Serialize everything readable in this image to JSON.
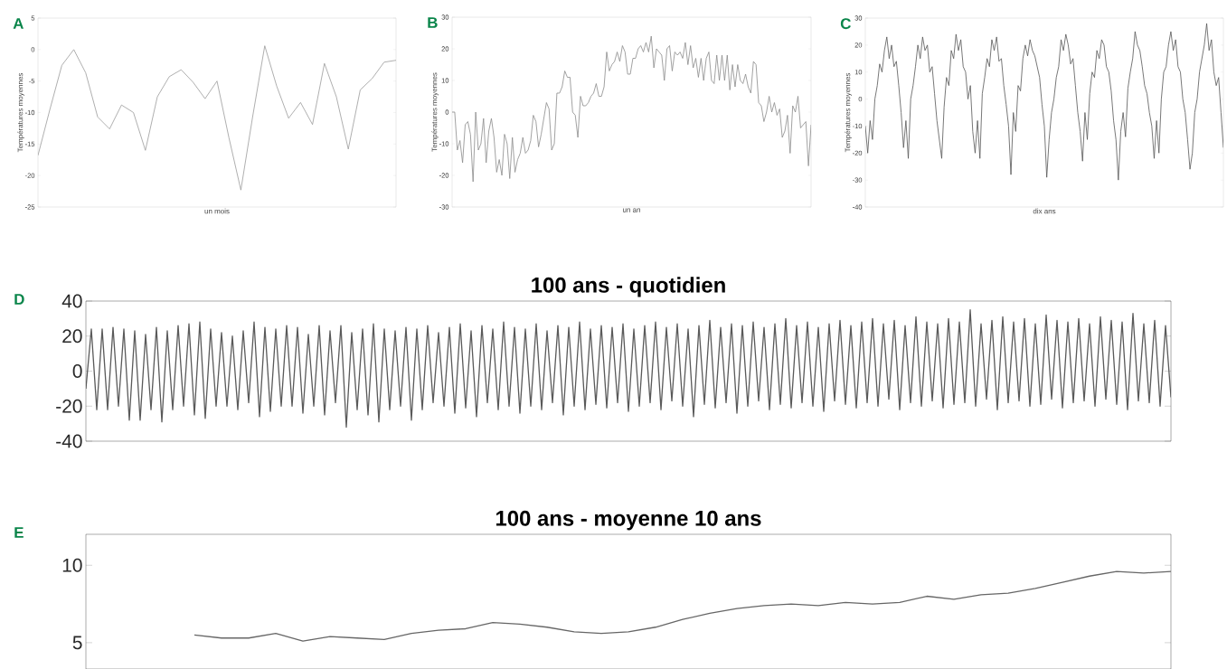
{
  "chart_data": [
    {
      "type": "line",
      "xlabel": "un mois",
      "ylabel": "Températures moyennes",
      "annotations": [
        "A"
      ],
      "tick_labels": "y",
      "color": "#9a9a9a",
      "ylim": [
        -25,
        5
      ],
      "yticks": [
        -25,
        -20,
        -15,
        -10,
        -5,
        0,
        5
      ],
      "categories": [
        null,
        null,
        null,
        null,
        null,
        null,
        null,
        null,
        null,
        null,
        null,
        null,
        null,
        null,
        null,
        null,
        null,
        null,
        null,
        null,
        null,
        null,
        null,
        null,
        null,
        null,
        null,
        null,
        null,
        null,
        null
      ],
      "values": [
        -16.8,
        -9.5,
        -2.5,
        0,
        -3.7,
        -10.7,
        -12.6,
        -8.8,
        -10,
        -16,
        -7.5,
        -4.3,
        -3.2,
        -5.2,
        -7.8,
        -5,
        -14,
        -22.3,
        -10.5,
        0.6,
        -5.8,
        -10.9,
        -8.4,
        -11.9,
        -2.2,
        -7.5,
        -15.8,
        -6.4,
        -4.6,
        -2,
        -1.7
      ]
    },
    {
      "type": "line",
      "xlabel": "un an",
      "ylabel": "Températures moyennes",
      "annotations": [
        "B"
      ],
      "tick_labels": "y",
      "color": "#8a8a8a",
      "ylim": [
        -30,
        30
      ],
      "yticks": [
        -30,
        -20,
        -10,
        0,
        10,
        20,
        30
      ],
      "categories": [
        null,
        null,
        null,
        null,
        null,
        null,
        null,
        null,
        null,
        null,
        null,
        null,
        null,
        null,
        null,
        null,
        null,
        null,
        null,
        null,
        null,
        null,
        null,
        null,
        null,
        null,
        null,
        null,
        null,
        null,
        null,
        null,
        null,
        null,
        null,
        null,
        null,
        null,
        null,
        null,
        null,
        null,
        null,
        null,
        null,
        null,
        null,
        null,
        null,
        null,
        null,
        null,
        null,
        null,
        null,
        null,
        null,
        null,
        null,
        null,
        null,
        null,
        null,
        null,
        null,
        null,
        null,
        null,
        null,
        null,
        null,
        null,
        null,
        null,
        null,
        null,
        null,
        null,
        null,
        null,
        null,
        null,
        null,
        null,
        null,
        null,
        null,
        null,
        null,
        null,
        null,
        null,
        null,
        null,
        null,
        null,
        null,
        null,
        null,
        null,
        null,
        null,
        null,
        null,
        null,
        null,
        null,
        null,
        null,
        null,
        null,
        null,
        null,
        null,
        null,
        null,
        null,
        null,
        null,
        null,
        null,
        null,
        null,
        null,
        null,
        null,
        null,
        null,
        null,
        null,
        null,
        null,
        null,
        null,
        null,
        null,
        null,
        null
      ],
      "values": [
        0,
        0,
        -12,
        -9,
        -16,
        -4,
        -3,
        -7,
        -22,
        0,
        -12,
        -10,
        -2,
        -16,
        -6,
        -2,
        -8,
        -19,
        -15,
        -20,
        -7,
        -10,
        -21,
        -8,
        -19,
        -15,
        -13,
        -8,
        -13,
        -12,
        -9,
        -1,
        -3,
        -11,
        -7,
        -2,
        3,
        1,
        -12,
        -10,
        6,
        6,
        8,
        13,
        11,
        11,
        0,
        -1,
        -8,
        5,
        2,
        2,
        3,
        5,
        6,
        9,
        5,
        5,
        8,
        19,
        13,
        15,
        16,
        19,
        16,
        21,
        19,
        12,
        12,
        17,
        17,
        20,
        21,
        19,
        22,
        19,
        24,
        14,
        20,
        19,
        18,
        10,
        20,
        21,
        13,
        19,
        18,
        19,
        17,
        22,
        15,
        21,
        14,
        17,
        11,
        17,
        10,
        17,
        19,
        10,
        9,
        18,
        10,
        18,
        10,
        18,
        7,
        15,
        8,
        15,
        10,
        9,
        12,
        8,
        6,
        16,
        15,
        3,
        2,
        -3,
        0,
        5,
        0,
        3,
        -1,
        1,
        -8,
        -6,
        -1,
        -13,
        2,
        0,
        5,
        -5,
        -4,
        -3,
        -17,
        -4
      ]
    },
    {
      "type": "line",
      "xlabel": "dix ans",
      "ylabel": "Températures moyennes",
      "annotations": [
        "C"
      ],
      "tick_labels": "y",
      "color": "#555555",
      "ylim": [
        -40,
        30
      ],
      "yticks": [
        -40,
        -30,
        -20,
        -10,
        0,
        10,
        20,
        30
      ],
      "categories": [
        null,
        null,
        null,
        null,
        null,
        null,
        null,
        null,
        null,
        null,
        null,
        null,
        null,
        null,
        null,
        null,
        null,
        null,
        null,
        null,
        null,
        null,
        null,
        null,
        null,
        null,
        null,
        null,
        null,
        null,
        null,
        null,
        null,
        null,
        null,
        null,
        null,
        null,
        null,
        null,
        null,
        null,
        null,
        null,
        null,
        null,
        null,
        null,
        null,
        null,
        null,
        null,
        null,
        null,
        null,
        null,
        null,
        null,
        null,
        null,
        null,
        null,
        null,
        null,
        null,
        null,
        null,
        null,
        null,
        null,
        null,
        null,
        null,
        null,
        null,
        null,
        null,
        null,
        null,
        null,
        null,
        null,
        null,
        null,
        null,
        null,
        null,
        null,
        null,
        null,
        null,
        null,
        null,
        null,
        null,
        null,
        null,
        null,
        null,
        null,
        null,
        null,
        null,
        null,
        null,
        null,
        null,
        null,
        null,
        null,
        null,
        null,
        null,
        null,
        null,
        null,
        null,
        null,
        null,
        null,
        null,
        null,
        null,
        null,
        null,
        null,
        null,
        null,
        null,
        null,
        null,
        null,
        null,
        null,
        null,
        null,
        null,
        null,
        null,
        null,
        null,
        null,
        null,
        null,
        null,
        null,
        null,
        null,
        null,
        null,
        null
      ],
      "values": [
        -10,
        -20,
        -8,
        -15,
        0,
        5,
        13,
        10,
        18,
        23,
        15,
        20,
        12,
        14,
        5,
        -5,
        -18,
        -8,
        -22,
        0,
        5,
        12,
        20,
        15,
        23,
        18,
        20,
        10,
        12,
        2,
        -8,
        -15,
        -22,
        -3,
        8,
        5,
        18,
        15,
        24,
        18,
        22,
        12,
        10,
        0,
        5,
        -12,
        -20,
        -8,
        -22,
        2,
        8,
        15,
        12,
        22,
        18,
        23,
        14,
        15,
        5,
        -2,
        -10,
        -28,
        -5,
        -12,
        5,
        3,
        15,
        20,
        16,
        22,
        18,
        16,
        12,
        8,
        -2,
        -10,
        -29,
        -15,
        -5,
        0,
        8,
        12,
        22,
        18,
        24,
        20,
        13,
        15,
        5,
        -5,
        -12,
        -23,
        -5,
        -15,
        2,
        10,
        8,
        18,
        15,
        22,
        20,
        12,
        10,
        3,
        -8,
        -15,
        -30,
        -12,
        -5,
        -14,
        4,
        10,
        15,
        25,
        20,
        18,
        12,
        5,
        2,
        -5,
        -10,
        -22,
        -8,
        -20,
        0,
        10,
        12,
        20,
        25,
        18,
        22,
        12,
        10,
        0,
        -5,
        -15,
        -26,
        -20,
        -5,
        0,
        10,
        15,
        20,
        28,
        18,
        22,
        10,
        5,
        8,
        -5,
        -18
      ]
    },
    {
      "type": "line",
      "title": "100 ans - quotidien",
      "annotations": [
        "D"
      ],
      "tick_labels": "y",
      "color": "#5a5a5a",
      "ylim": [
        -40,
        40
      ],
      "yticks": [
        -40,
        -20,
        0,
        20,
        40
      ],
      "categories": [
        null,
        null,
        null,
        null,
        null,
        null,
        null,
        null,
        null,
        null,
        null,
        null,
        null,
        null,
        null,
        null,
        null,
        null,
        null,
        null,
        null,
        null,
        null,
        null,
        null,
        null,
        null,
        null,
        null,
        null,
        null,
        null,
        null,
        null,
        null,
        null,
        null,
        null,
        null,
        null,
        null,
        null,
        null,
        null,
        null,
        null,
        null,
        null,
        null,
        null,
        null,
        null,
        null,
        null,
        null,
        null,
        null,
        null,
        null,
        null,
        null,
        null,
        null,
        null,
        null,
        null,
        null,
        null,
        null,
        null,
        null,
        null,
        null,
        null,
        null,
        null,
        null,
        null,
        null,
        null,
        null,
        null,
        null,
        null,
        null,
        null,
        null,
        null,
        null,
        null,
        null,
        null,
        null,
        null,
        null,
        null,
        null,
        null,
        null,
        null,
        null,
        null,
        null,
        null,
        null,
        null,
        null,
        null,
        null,
        null,
        null,
        null,
        null,
        null,
        null,
        null,
        null,
        null,
        null,
        null,
        null,
        null,
        null,
        null,
        null,
        null,
        null,
        null,
        null,
        null,
        null,
        null,
        null,
        null,
        null,
        null,
        null,
        null,
        null,
        null,
        null,
        null,
        null,
        null,
        null,
        null,
        null,
        null,
        null,
        null,
        null,
        null,
        null,
        null,
        null,
        null,
        null,
        null,
        null,
        null,
        null,
        null,
        null,
        null,
        null,
        null,
        null,
        null,
        null,
        null,
        null,
        null,
        null,
        null,
        null,
        null,
        null,
        null,
        null,
        null,
        null,
        null,
        null,
        null,
        null,
        null,
        null,
        null,
        null,
        null,
        null,
        null,
        null,
        null,
        null,
        null,
        null,
        null,
        null,
        null,
        null
      ],
      "values": [
        -10,
        24,
        -22,
        24,
        -22,
        25,
        -20,
        24,
        -28,
        23,
        -28,
        21,
        -22,
        25,
        -29,
        23,
        -22,
        26,
        -20,
        27,
        -25,
        28,
        -27,
        24,
        -20,
        22,
        -20,
        20,
        -22,
        23,
        -18,
        28,
        -26,
        25,
        -23,
        24,
        -20,
        26,
        -20,
        25,
        -24,
        21,
        -20,
        26,
        -25,
        23,
        -18,
        26,
        -32,
        22,
        -22,
        24,
        -25,
        27,
        -29,
        24,
        -22,
        23,
        -20,
        25,
        -28,
        24,
        -22,
        26,
        -18,
        22,
        -20,
        25,
        -24,
        27,
        -21,
        23,
        -26,
        26,
        -18,
        24,
        -22,
        28,
        -20,
        25,
        -24,
        24,
        -20,
        27,
        -22,
        23,
        -18,
        26,
        -25,
        25,
        -20,
        28,
        -22,
        24,
        -19,
        26,
        -21,
        25,
        -18,
        27,
        -23,
        24,
        -20,
        26,
        -18,
        28,
        -22,
        25,
        -17,
        27,
        -20,
        24,
        -26,
        26,
        -19,
        29,
        -21,
        25,
        -18,
        27,
        -24,
        26,
        -20,
        28,
        -17,
        25,
        -22,
        27,
        -19,
        30,
        -21,
        26,
        -18,
        28,
        -20,
        25,
        -23,
        27,
        -17,
        29,
        -19,
        26,
        -21,
        28,
        -18,
        30,
        -20,
        27,
        -16,
        29,
        -22,
        26,
        -18,
        31,
        -20,
        28,
        -17,
        27,
        -21,
        30,
        -19,
        28,
        -18,
        35,
        -20,
        27,
        -16,
        29,
        -22,
        31,
        -18,
        28,
        -17,
        30,
        -20,
        27,
        -19,
        32,
        -16,
        29,
        -21,
        28,
        -18,
        30,
        -17,
        27,
        -20,
        31,
        -16,
        29,
        -19,
        28,
        -22,
        33,
        -17,
        27,
        -18,
        29,
        -20,
        26,
        -15
      ]
    },
    {
      "type": "line",
      "title": "100 ans - moyenne 10 ans",
      "annotations": [
        "E"
      ],
      "tick_labels": "y",
      "color": "#666666",
      "ylim": [
        3.3,
        12
      ],
      "yticks": [
        5,
        10
      ],
      "categories": [
        null,
        null,
        null,
        null,
        null,
        null,
        null,
        null,
        null,
        null,
        null,
        null,
        null,
        null,
        null,
        null,
        null,
        null,
        null,
        null,
        null,
        null,
        null,
        null,
        null,
        null,
        null,
        null,
        null,
        null,
        null,
        null,
        null,
        null,
        null,
        null,
        null,
        null,
        null,
        null,
        null
      ],
      "values": [
        null,
        null,
        null,
        null,
        5.5,
        5.3,
        5.3,
        5.6,
        5.1,
        5.4,
        5.3,
        5.2,
        5.6,
        5.8,
        5.9,
        6.3,
        6.2,
        6.0,
        5.7,
        5.6,
        5.7,
        6.0,
        6.5,
        6.9,
        7.2,
        7.4,
        7.5,
        7.4,
        7.6,
        7.5,
        7.6,
        8.0,
        7.8,
        8.1,
        8.2,
        8.5,
        8.9,
        9.3,
        9.6,
        9.5,
        9.6
      ]
    }
  ]
}
